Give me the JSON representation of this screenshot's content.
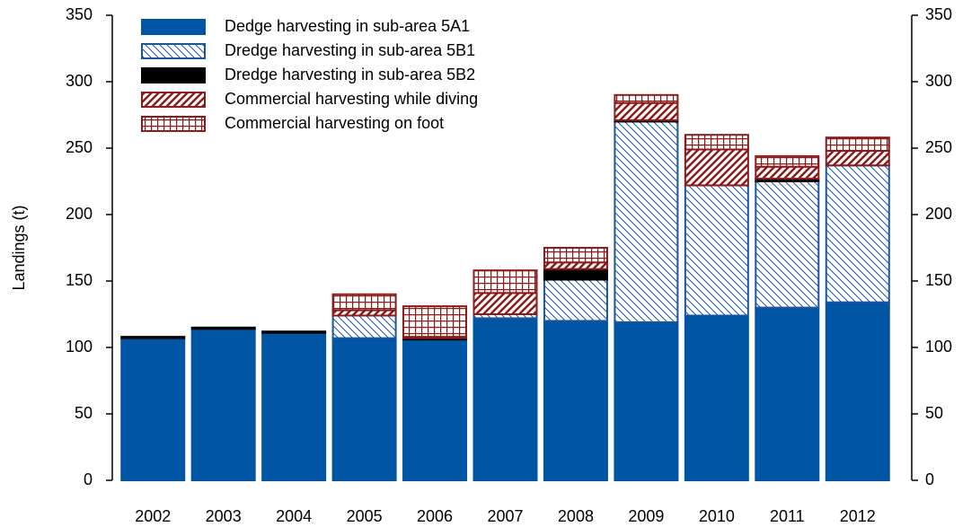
{
  "chart_data": {
    "type": "stacked_bar",
    "y_label": "Landings (t)",
    "categories": [
      "2002",
      "2003",
      "2004",
      "2005",
      "2006",
      "2007",
      "2008",
      "2009",
      "2010",
      "2011",
      "2012"
    ],
    "series": [
      {
        "name": "Dedge harvesting in sub-area 5A1",
        "color": "#0055a5",
        "pattern": "solid",
        "values": [
          107,
          114,
          111,
          107,
          106,
          122,
          120,
          119,
          124,
          130,
          134
        ]
      },
      {
        "name": "Dredge harvesting in sub-area 5B1",
        "color": "#1a56a0",
        "pattern": "backslash",
        "values": [
          0,
          0,
          0,
          17,
          0,
          3,
          31,
          151,
          98,
          95,
          103
        ]
      },
      {
        "name": "Dredge harvesting in sub-area 5B2",
        "color": "#000000",
        "pattern": "solid",
        "values": [
          1,
          1,
          1,
          0,
          1,
          0,
          8,
          1,
          0,
          2,
          0
        ]
      },
      {
        "name": "Commercial harvesting while diving",
        "color": "#8b1a1a",
        "pattern": "slash",
        "values": [
          0,
          0,
          0,
          4,
          1,
          16,
          5,
          13,
          27,
          9,
          11
        ]
      },
      {
        "name": "Commercial harvesting on foot",
        "color": "#8b1a1a",
        "pattern": "grid",
        "values": [
          0,
          0,
          0,
          12,
          23,
          17,
          11,
          6,
          11,
          8,
          10
        ]
      }
    ],
    "ylim": [
      0,
      350
    ],
    "yticks": [
      0,
      50,
      100,
      150,
      200,
      250,
      300,
      350
    ],
    "y2lim": [
      0,
      350
    ],
    "y2ticks": [
      0,
      50,
      100,
      150,
      200,
      250,
      300,
      350
    ],
    "grid": false,
    "legend": "upper left"
  }
}
